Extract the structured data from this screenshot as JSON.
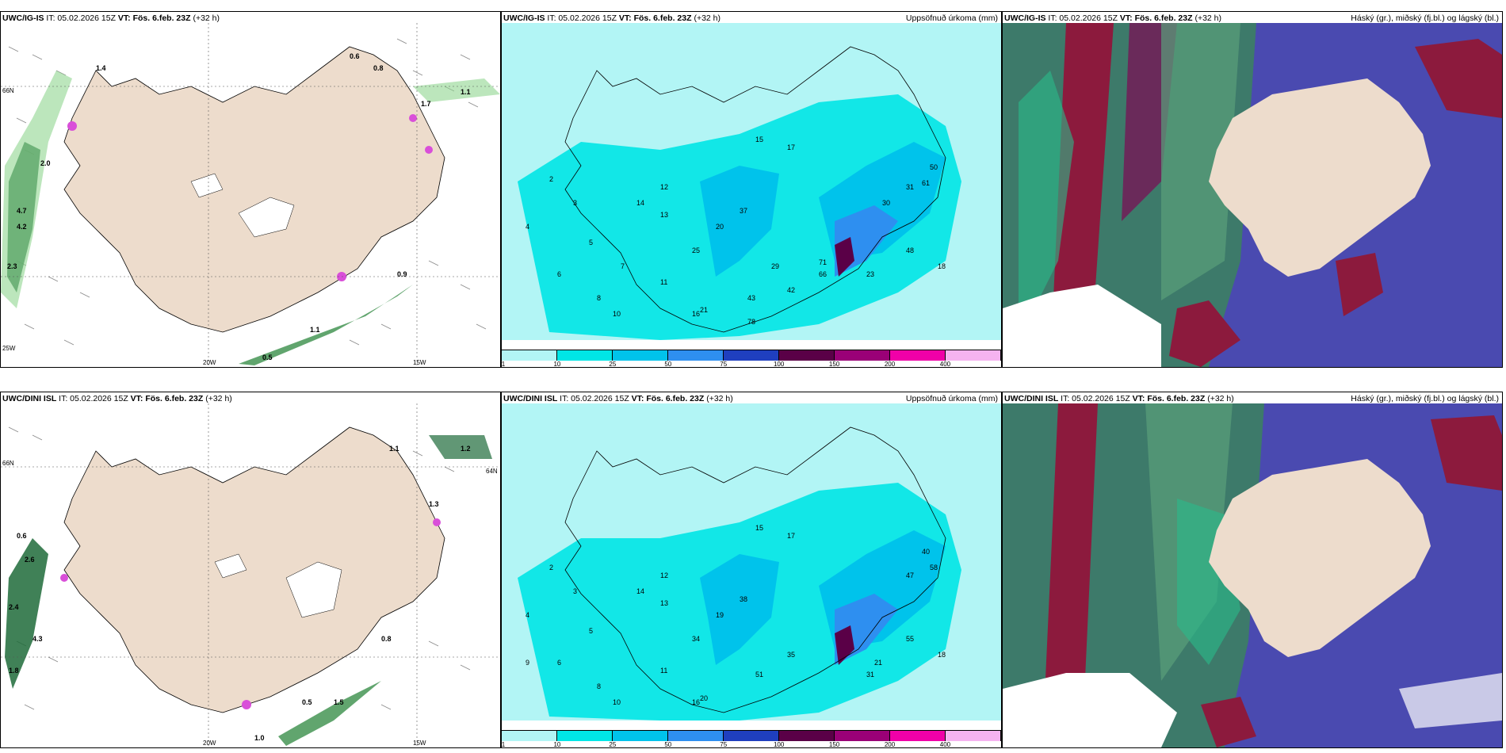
{
  "panels": [
    {
      "model": "UWC/IG-IS",
      "it": "IT: 05.02.2026 15Z",
      "vt": "VT: Fös. 6.feb. 23Z",
      "lead": "(+32 h)",
      "right": ""
    },
    {
      "model": "UWC/IG-IS",
      "it": "IT: 05.02.2026 15Z",
      "vt": "VT: Fös. 6.feb. 23Z",
      "lead": "(+32 h)",
      "right": "Uppsöfnuð úrkoma (mm)"
    },
    {
      "model": "UWC/IG-IS",
      "it": "IT: 05.02.2026 15Z",
      "vt": "VT: Fös. 6.feb. 23Z",
      "lead": "(+32 h)",
      "right": "Háský (gr.), miðský (fj.bl.) og lágský (bl.)"
    },
    {
      "model": "UWC/DINI ISL",
      "it": "IT: 05.02.2026 15Z",
      "vt": "VT: Fös. 6.feb. 23Z",
      "lead": "(+32",
      "right": ""
    },
    {
      "model": "UWC/DINI ISL",
      "it": "IT: 05.02.2026 15Z",
      "vt": "VT: Fös. 6.feb. 23Z",
      "lead": "(+32 h)",
      "right": "Uppsöfnuð úrkoma (mm)"
    },
    {
      "model": "UWC/DINI ISL",
      "it": "IT: 05.02.2026 15Z",
      "vt": "VT: Fös. 6.feb. 23Z",
      "lead": "(+32 h)",
      "right": "Háský (gr.), miðský (fj.bl.) og lágský (bl.)"
    }
  ],
  "wrap_text": "h)",
  "axes": {
    "lat66": "66N",
    "lat64": "64N",
    "lon25": "25W",
    "lon20": "20W",
    "lon15": "15W"
  },
  "colorbar": {
    "ticks": [
      "1",
      "10",
      "25",
      "50",
      "75",
      "100",
      "150",
      "200",
      "400"
    ],
    "colors": [
      "#b2f5f5",
      "#00e6e6",
      "#00c3eb",
      "#2e8ff0",
      "#1f3fbf",
      "#5a0047",
      "#9a0077",
      "#f000a8",
      "#f5b3f0"
    ]
  },
  "precip_top": [
    "2",
    "3",
    "4",
    "5",
    "6",
    "7",
    "8",
    "10",
    "11",
    "12",
    "13",
    "14",
    "15",
    "16",
    "17",
    "18",
    "20",
    "21",
    "23",
    "25",
    "29",
    "30",
    "31",
    "37",
    "42",
    "43",
    "48",
    "50",
    "61",
    "66",
    "71",
    "78"
  ],
  "precip_bottom": [
    "2",
    "3",
    "4",
    "5",
    "6",
    "8",
    "9",
    "10",
    "11",
    "12",
    "13",
    "14",
    "15",
    "16",
    "17",
    "18",
    "19",
    "20",
    "21",
    "31",
    "34",
    "35",
    "38",
    "40",
    "47",
    "51",
    "55",
    "58"
  ],
  "wind_top": [
    "0.6",
    "0.8",
    "0.9",
    "1.1",
    "1.4",
    "1.7",
    "2.0",
    "2.3",
    "4.2",
    "4.7",
    "0.5",
    "1.1"
  ],
  "wind_bottom": [
    "0.6",
    "1.0",
    "1.1",
    "1.2",
    "1.3",
    "1.8",
    "2.4",
    "2.6",
    "4.3",
    "0.5",
    "0.8",
    "1.5"
  ]
}
